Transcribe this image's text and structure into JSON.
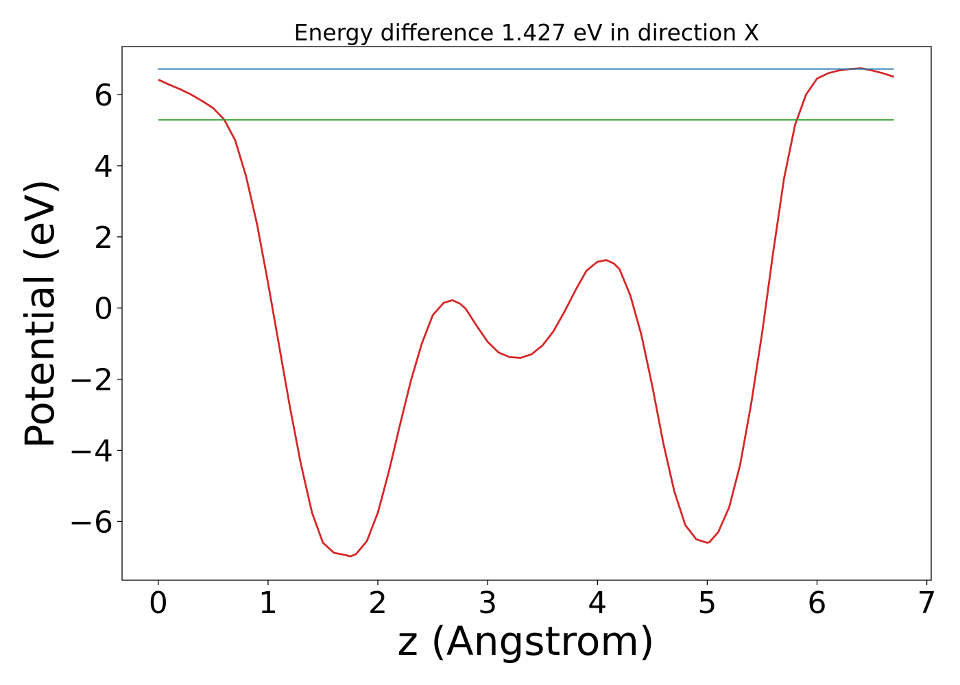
{
  "chart_data": {
    "type": "line",
    "title": "Energy difference 1.427 eV in direction X",
    "xlabel": "z (Angstrom)",
    "ylabel": "Potential (eV)",
    "xlim": [
      -0.33,
      7.04
    ],
    "ylim": [
      -7.65,
      7.35
    ],
    "xticks": [
      0,
      1,
      2,
      3,
      4,
      5,
      6,
      7
    ],
    "xtick_labels": [
      "0",
      "1",
      "2",
      "3",
      "4",
      "5",
      "6",
      "7"
    ],
    "yticks": [
      6,
      4,
      2,
      0,
      -2,
      -4,
      -6
    ],
    "ytick_labels": [
      "6",
      "4",
      "2",
      "0",
      "−2",
      "−4",
      "−6"
    ],
    "grid": false,
    "legend": "none",
    "series": [
      {
        "color": "#d62728",
        "x": [
          0.0,
          0.1,
          0.2,
          0.3,
          0.4,
          0.5,
          0.6,
          0.7,
          0.8,
          0.9,
          1.0,
          1.1,
          1.2,
          1.3,
          1.4,
          1.5,
          1.6,
          1.7,
          1.75,
          1.8,
          1.9,
          2.0,
          2.1,
          2.2,
          2.3,
          2.4,
          2.5,
          2.6,
          2.68,
          2.75,
          2.8,
          2.9,
          3.0,
          3.1,
          3.2,
          3.3,
          3.4,
          3.5,
          3.6,
          3.7,
          3.8,
          3.9,
          4.0,
          4.08,
          4.15,
          4.2,
          4.3,
          4.4,
          4.5,
          4.6,
          4.7,
          4.8,
          4.9,
          5.0,
          5.02,
          5.1,
          5.2,
          5.3,
          5.4,
          5.5,
          5.6,
          5.7,
          5.8,
          5.9,
          6.0,
          6.1,
          6.2,
          6.3,
          6.4,
          6.5,
          6.6,
          6.7
        ],
        "y": [
          6.42,
          6.28,
          6.15,
          6.0,
          5.82,
          5.62,
          5.3,
          4.72,
          3.7,
          2.35,
          0.7,
          -1.05,
          -2.8,
          -4.4,
          -5.75,
          -6.6,
          -6.88,
          -6.94,
          -6.98,
          -6.92,
          -6.55,
          -5.75,
          -4.6,
          -3.3,
          -2.05,
          -1.0,
          -0.2,
          0.15,
          0.22,
          0.12,
          -0.02,
          -0.5,
          -0.95,
          -1.25,
          -1.38,
          -1.4,
          -1.3,
          -1.05,
          -0.65,
          -0.1,
          0.5,
          1.05,
          1.3,
          1.35,
          1.25,
          1.1,
          0.35,
          -0.75,
          -2.2,
          -3.8,
          -5.15,
          -6.1,
          -6.5,
          -6.6,
          -6.58,
          -6.3,
          -5.6,
          -4.4,
          -2.7,
          -0.7,
          1.55,
          3.65,
          5.15,
          6.0,
          6.45,
          6.6,
          6.68,
          6.72,
          6.74,
          6.68,
          6.6,
          6.5
        ]
      },
      {
        "color": "#1f77b4",
        "x": [
          0.0,
          6.7
        ],
        "y": [
          6.72,
          6.72
        ]
      },
      {
        "color": "#2ca02c",
        "x": [
          0.0,
          6.7
        ],
        "y": [
          5.29,
          5.29
        ]
      }
    ]
  }
}
